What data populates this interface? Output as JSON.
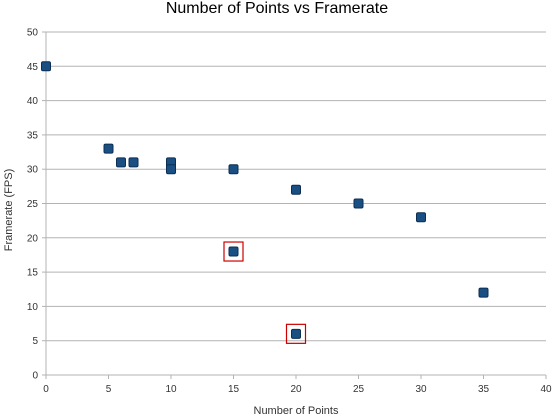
{
  "chart_data": {
    "type": "scatter",
    "title": "Number of Points vs Framerate",
    "xlabel": "Number of Points",
    "ylabel": "Framerate (FPS)",
    "xlim": [
      0,
      40
    ],
    "ylim": [
      0,
      50
    ],
    "x_ticks": [
      0,
      5,
      10,
      15,
      20,
      25,
      30,
      35,
      40
    ],
    "y_ticks": [
      0,
      5,
      10,
      15,
      20,
      25,
      30,
      35,
      40,
      45,
      50
    ],
    "grid": "horizontal",
    "legend": "none",
    "marker_color": "#1a4f84",
    "highlight_color": "#cc0000",
    "series": [
      {
        "points": [
          {
            "x": 0,
            "y": 45
          },
          {
            "x": 5,
            "y": 33
          },
          {
            "x": 6,
            "y": 31
          },
          {
            "x": 7,
            "y": 31
          },
          {
            "x": 10,
            "y": 31
          },
          {
            "x": 10,
            "y": 30
          },
          {
            "x": 15,
            "y": 30
          },
          {
            "x": 20,
            "y": 27
          },
          {
            "x": 25,
            "y": 25
          },
          {
            "x": 30,
            "y": 23
          },
          {
            "x": 35,
            "y": 12
          },
          {
            "x": 15,
            "y": 18,
            "highlighted": true
          },
          {
            "x": 20,
            "y": 6,
            "highlighted": true
          }
        ]
      }
    ]
  }
}
